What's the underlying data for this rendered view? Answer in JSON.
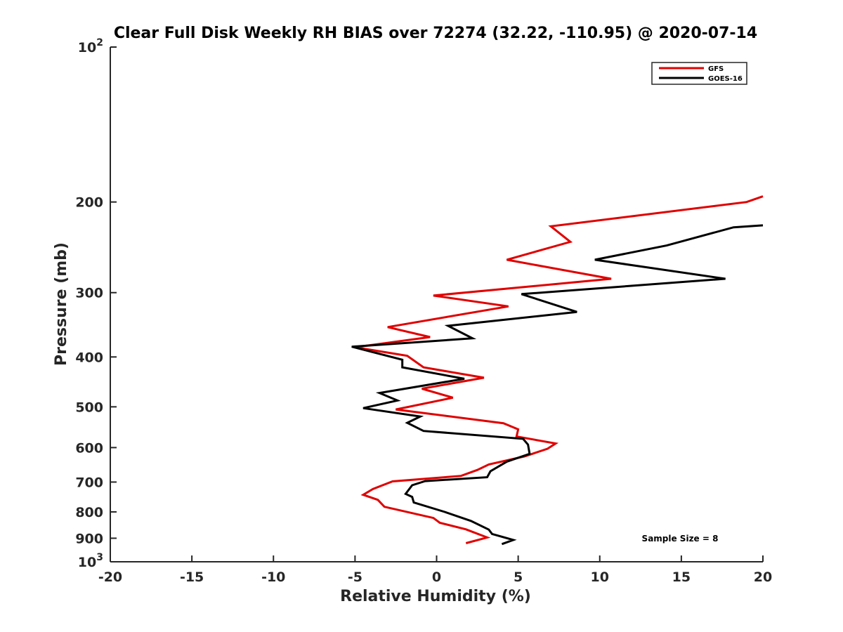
{
  "chart_data": {
    "type": "line",
    "title": "Clear Full Disk Weekly RH BIAS over 72274 (32.22, -110.95) @ 2020-07-14",
    "xlabel": "Relative Humidity (%)",
    "ylabel": "Pressure (mb)",
    "xlim": [
      -20,
      20
    ],
    "ylim": [
      100,
      1000
    ],
    "y_scale": "log",
    "y_reversed": true,
    "x_ticks": [
      "-20",
      "-15",
      "-10",
      "-5",
      "0",
      "5",
      "10",
      "15",
      "20"
    ],
    "y_ticks": [
      {
        "value": 100,
        "base": "10",
        "exp": "2"
      },
      {
        "value": 200,
        "label": "200"
      },
      {
        "value": 300,
        "label": "300"
      },
      {
        "value": 400,
        "label": "400"
      },
      {
        "value": 500,
        "label": "500"
      },
      {
        "value": 600,
        "label": "600"
      },
      {
        "value": 700,
        "label": "700"
      },
      {
        "value": 800,
        "label": "800"
      },
      {
        "value": 900,
        "label": "900"
      },
      {
        "value": 1000,
        "base": "10",
        "exp": "3"
      }
    ],
    "grid": false,
    "legend_position": "top-right",
    "annotation": "Sample Size = 8",
    "series": [
      {
        "name": "GFS",
        "color": "#e00000",
        "points": [
          [
            20.0,
            195
          ],
          [
            19.0,
            200
          ],
          [
            7.0,
            223
          ],
          [
            8.2,
            239
          ],
          [
            4.3,
            259
          ],
          [
            10.7,
            282
          ],
          [
            -0.2,
            304
          ],
          [
            4.4,
            319
          ],
          [
            -3.0,
            350
          ],
          [
            -0.4,
            366
          ],
          [
            -5.0,
            383
          ],
          [
            -1.8,
            398
          ],
          [
            -0.8,
            419
          ],
          [
            2.9,
            439
          ],
          [
            -0.9,
            461
          ],
          [
            1.0,
            480
          ],
          [
            -2.5,
            506
          ],
          [
            4.1,
            538
          ],
          [
            5.0,
            553
          ],
          [
            4.9,
            571
          ],
          [
            7.3,
            589
          ],
          [
            6.8,
            603
          ],
          [
            5.4,
            624
          ],
          [
            3.2,
            647
          ],
          [
            2.5,
            663
          ],
          [
            1.5,
            681
          ],
          [
            -2.7,
            698
          ],
          [
            -3.9,
            722
          ],
          [
            -4.5,
            741
          ],
          [
            -3.6,
            758
          ],
          [
            -3.2,
            782
          ],
          [
            -0.2,
            822
          ],
          [
            0.2,
            840
          ],
          [
            1.8,
            865
          ],
          [
            3.1,
            897
          ],
          [
            1.8,
            920
          ]
        ]
      },
      {
        "name": "GOES-16",
        "color": "#000000",
        "points": [
          [
            20.0,
            222
          ],
          [
            18.2,
            224
          ],
          [
            14.1,
            243
          ],
          [
            9.7,
            259
          ],
          [
            17.7,
            282
          ],
          [
            5.2,
            302
          ],
          [
            8.6,
            327
          ],
          [
            0.7,
            348
          ],
          [
            2.2,
            368
          ],
          [
            -5.2,
            382
          ],
          [
            -2.1,
            405
          ],
          [
            -2.1,
            419
          ],
          [
            1.7,
            441
          ],
          [
            -3.5,
            470
          ],
          [
            -2.4,
            486
          ],
          [
            -4.5,
            503
          ],
          [
            -1.0,
            522
          ],
          [
            -1.8,
            537
          ],
          [
            -0.8,
            557
          ],
          [
            5.3,
            577
          ],
          [
            5.6,
            592
          ],
          [
            5.7,
            617
          ],
          [
            4.3,
            639
          ],
          [
            3.3,
            667
          ],
          [
            3.1,
            685
          ],
          [
            -0.7,
            697
          ],
          [
            -1.5,
            710
          ],
          [
            -1.9,
            738
          ],
          [
            -1.5,
            748
          ],
          [
            -1.4,
            767
          ],
          [
            0.5,
            800
          ],
          [
            2.1,
            833
          ],
          [
            3.2,
            866
          ],
          [
            3.4,
            883
          ],
          [
            4.7,
            907
          ],
          [
            4.0,
            924
          ]
        ]
      }
    ]
  }
}
